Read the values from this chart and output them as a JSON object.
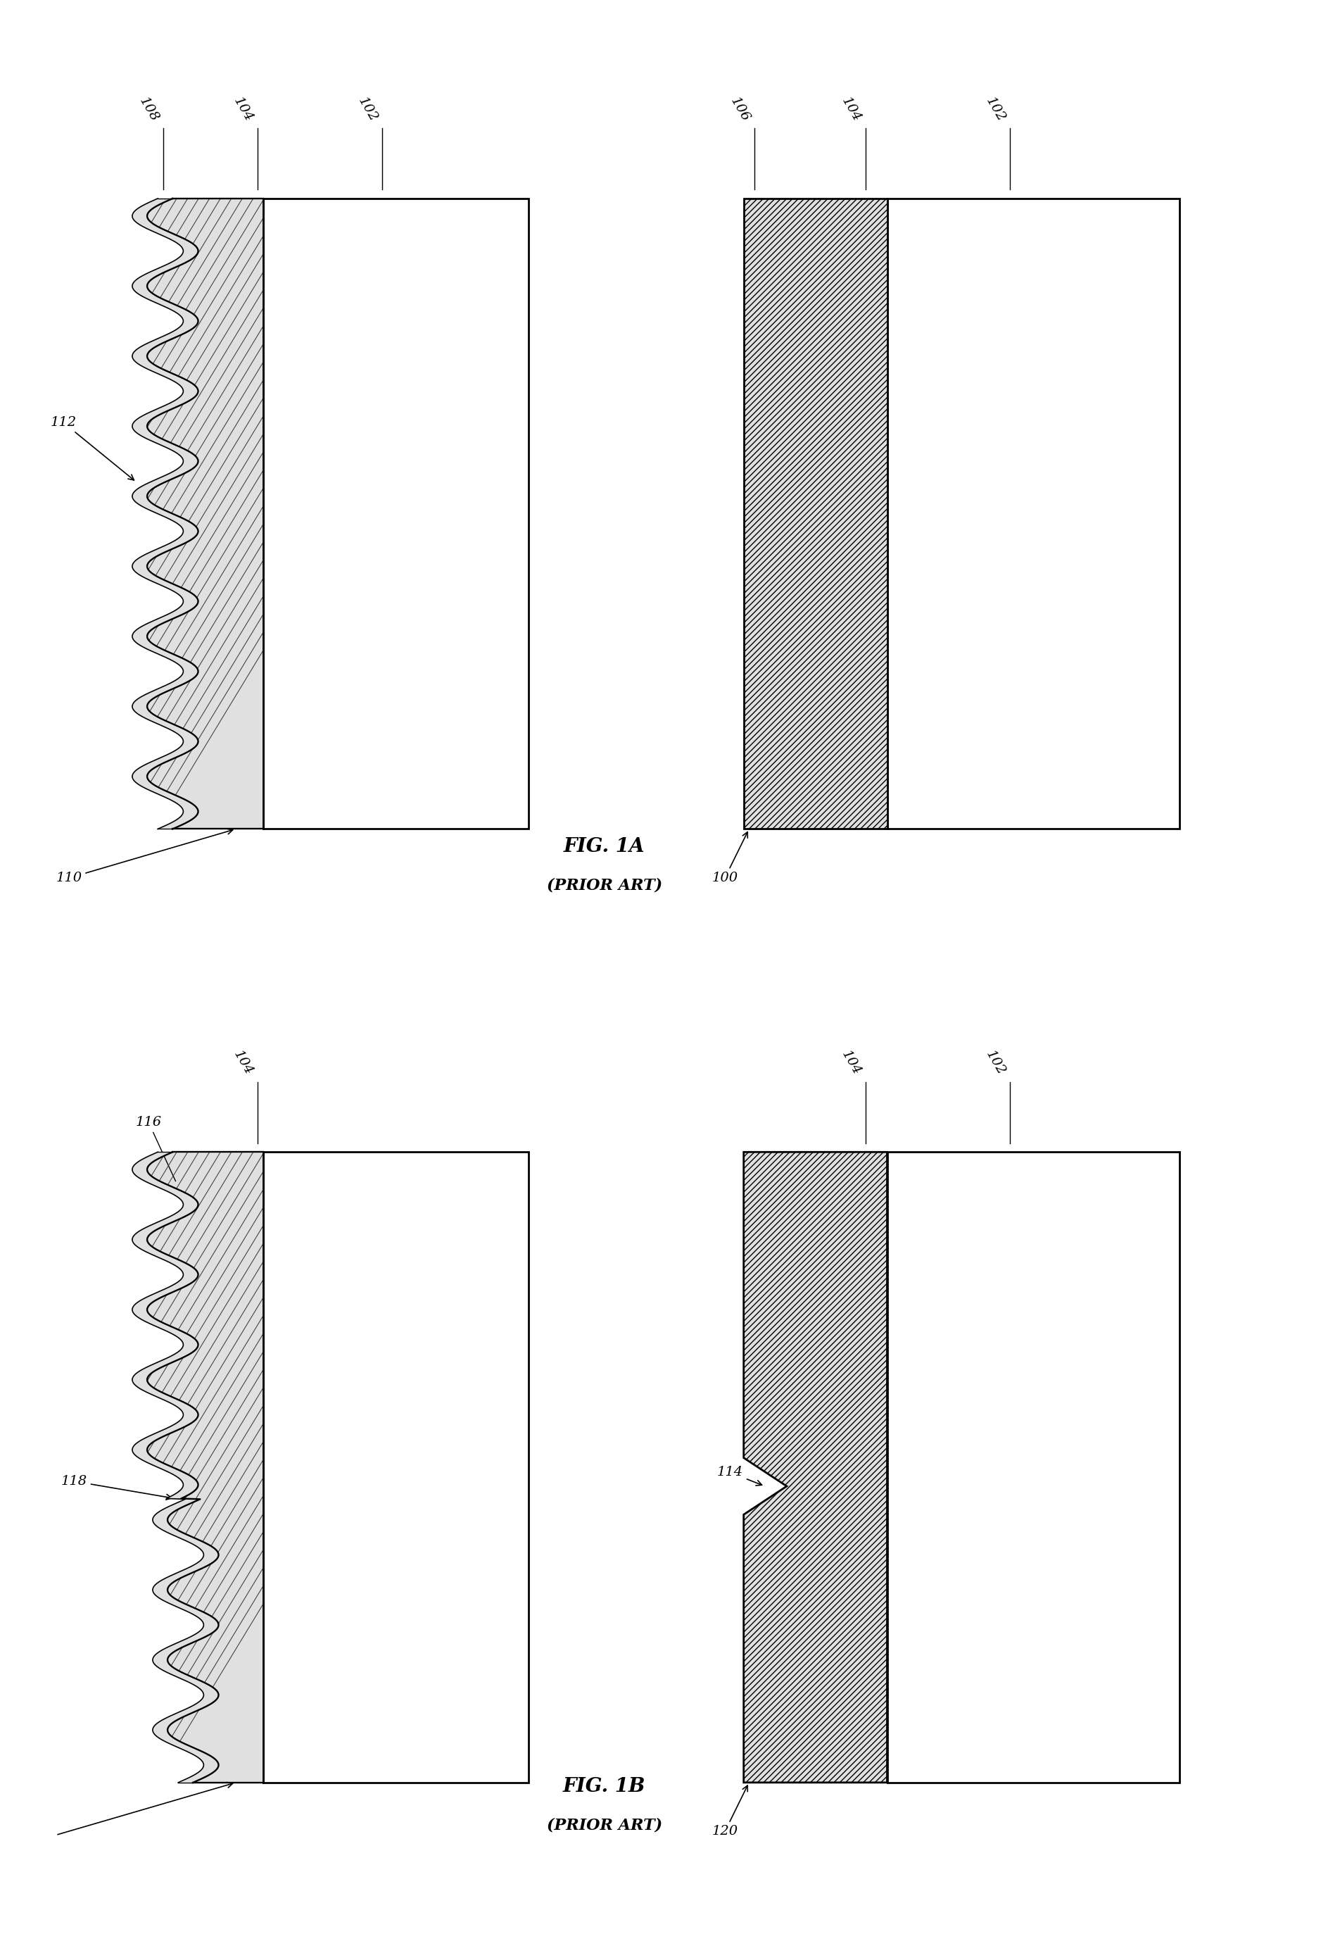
{
  "background_color": "#ffffff",
  "fig_width": 18.87,
  "fig_height": 27.64,
  "line_color": "#000000",
  "hatch_color": "#000000",
  "epi_facecolor": "#e0e0e0",
  "sub_facecolor": "#ffffff",
  "lw_thick": 2.0,
  "lw_thin": 1.2,
  "fontsize_label": 16,
  "fontsize_ref": 14,
  "fig1a_label": "FIG. 1A",
  "fig1a_sub": "(PRIOR ART)",
  "fig1b_label": "FIG. 1B",
  "fig1b_sub": "(PRIOR ART)",
  "ref_108": "108",
  "ref_104": "104",
  "ref_102": "102",
  "ref_106": "106",
  "ref_112": "112",
  "ref_110": "110",
  "ref_100": "100",
  "ref_116": "116",
  "ref_118": "118",
  "ref_114": "114",
  "ref_120": "120"
}
